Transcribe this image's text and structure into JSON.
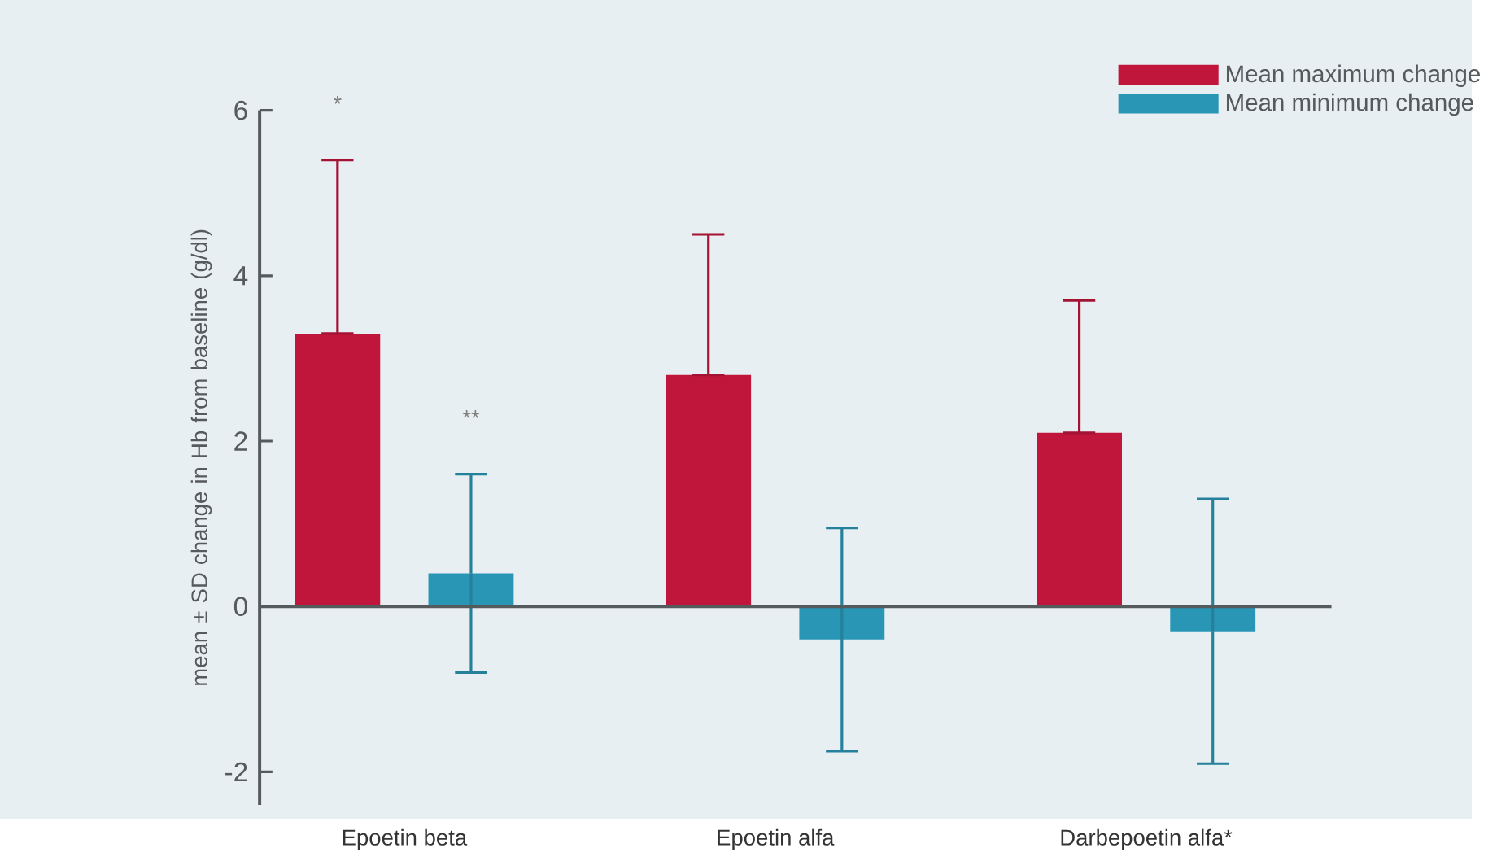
{
  "chart_data": {
    "type": "bar",
    "ylabel": "mean ± SD change in Hb from baseline (g/dl)",
    "categories": [
      "Epoetin beta",
      "Epoetin alfa",
      "Darbepoetin alfa*"
    ],
    "series": [
      {
        "name": "Mean maximum change",
        "color": "#c0163c",
        "values": [
          3.3,
          2.8,
          2.1
        ],
        "errors": [
          [
            3.3,
            5.4
          ],
          [
            2.8,
            4.5
          ],
          [
            2.1,
            3.7
          ]
        ]
      },
      {
        "name": "Mean minimum change",
        "color": "#2a96b6",
        "values": [
          0.4,
          -0.4,
          -0.3
        ],
        "errors": [
          1.2,
          1.35,
          1.6
        ]
      }
    ],
    "ylim": [
      -2.4,
      6
    ],
    "yticks": [
      -2,
      0,
      2,
      4,
      6
    ],
    "legend": "top right",
    "annotations": [
      "*",
      "**"
    ]
  }
}
